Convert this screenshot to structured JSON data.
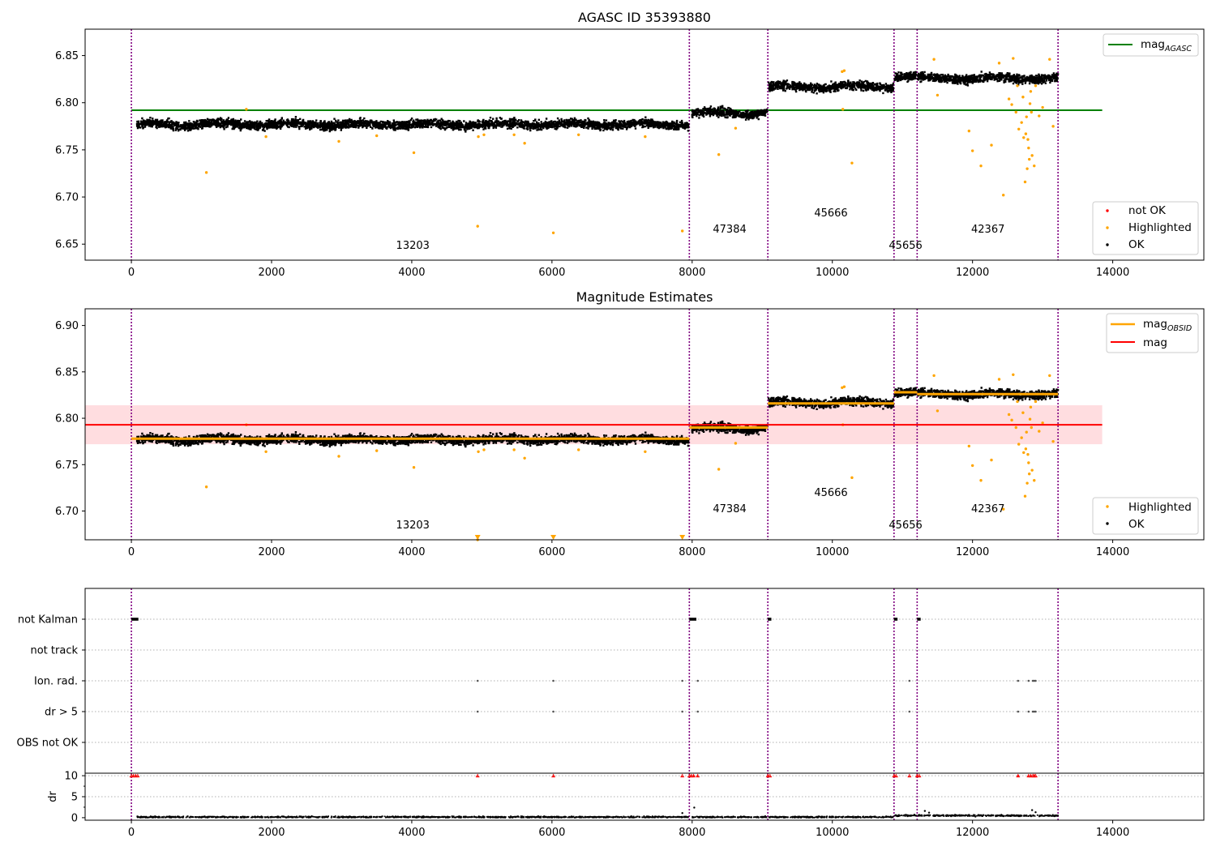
{
  "chart_data": [
    {
      "type": "scatter",
      "title": "AGASC ID 35393880",
      "xlabel": "",
      "ylabel": "",
      "xlim": [
        -660,
        15300
      ],
      "ylim": [
        6.633,
        6.878
      ],
      "x_ticks": [
        "0",
        "2000",
        "4000",
        "6000",
        "8000",
        "10000",
        "12000",
        "14000"
      ],
      "y_ticks": [
        "6.65",
        "6.70",
        "6.75",
        "6.80",
        "6.85"
      ],
      "legend_top": [
        "mag",
        "AGASC"
      ],
      "legend_bottom": [
        "not OK",
        "Highlighted",
        "OK"
      ],
      "obsid_labels": [
        "13203",
        "47384",
        "45666",
        "45656",
        "42367"
      ],
      "reference_line": {
        "name": "mag_AGASC",
        "y": 6.792,
        "x": [
          0,
          13850
        ],
        "color": "#008000"
      },
      "boundaries": [
        0,
        7960,
        9080,
        10880,
        11210,
        13220
      ],
      "segments": [
        {
          "obsid": "13203",
          "x": [
            80,
            7950
          ],
          "mean": 6.777,
          "spread": 0.006
        },
        {
          "obsid": "47384",
          "x": [
            8000,
            9070
          ],
          "mean": 6.789,
          "spread": 0.006
        },
        {
          "obsid": "45666",
          "x": [
            9090,
            10870
          ],
          "mean": 6.817,
          "spread": 0.006
        },
        {
          "obsid": "45656",
          "x": [
            10890,
            11200
          ],
          "mean": 6.828,
          "spread": 0.006
        },
        {
          "obsid": "42367",
          "x": [
            11220,
            13220
          ],
          "mean": 6.826,
          "spread": 0.006
        }
      ],
      "highlighted": [
        [
          1070,
          6.726
        ],
        [
          1640,
          6.793
        ],
        [
          1920,
          6.764
        ],
        [
          2960,
          6.759
        ],
        [
          3500,
          6.765
        ],
        [
          4030,
          6.747
        ],
        [
          4940,
          6.669
        ],
        [
          4950,
          6.764
        ],
        [
          5030,
          6.766
        ],
        [
          5460,
          6.766
        ],
        [
          5610,
          6.757
        ],
        [
          6020,
          6.662
        ],
        [
          6380,
          6.766
        ],
        [
          7330,
          6.764
        ],
        [
          7860,
          6.664
        ],
        [
          8380,
          6.745
        ],
        [
          8620,
          6.773
        ],
        [
          10140,
          6.833
        ],
        [
          10150,
          6.793
        ],
        [
          10280,
          6.736
        ],
        [
          10170,
          6.834
        ],
        [
          11450,
          6.846
        ],
        [
          11500,
          6.808
        ],
        [
          11950,
          6.77
        ],
        [
          12000,
          6.749
        ],
        [
          12120,
          6.733
        ],
        [
          12270,
          6.755
        ],
        [
          12380,
          6.842
        ],
        [
          12440,
          6.702
        ],
        [
          12520,
          6.804
        ],
        [
          12580,
          6.847
        ],
        [
          12640,
          6.818
        ],
        [
          12700,
          6.779
        ],
        [
          12750,
          6.716
        ],
        [
          12760,
          6.767
        ],
        [
          12780,
          6.73
        ],
        [
          12800,
          6.752
        ],
        [
          12820,
          6.799
        ],
        [
          12850,
          6.744
        ],
        [
          12880,
          6.733
        ],
        [
          12900,
          6.818
        ],
        [
          12950,
          6.786
        ],
        [
          13000,
          6.795
        ],
        [
          13100,
          6.846
        ],
        [
          13150,
          6.775
        ],
        [
          12620,
          6.79
        ],
        [
          12720,
          6.806
        ],
        [
          12790,
          6.761
        ],
        [
          12660,
          6.772
        ],
        [
          12830,
          6.812
        ],
        [
          12730,
          6.763
        ],
        [
          12840,
          6.79
        ],
        [
          12560,
          6.798
        ],
        [
          12770,
          6.785
        ],
        [
          12810,
          6.74
        ]
      ]
    },
    {
      "type": "scatter",
      "title": "Magnitude Estimates",
      "xlabel": "",
      "ylabel": "",
      "xlim": [
        -660,
        15300
      ],
      "ylim": [
        6.669,
        6.918
      ],
      "x_ticks": [
        "0",
        "2000",
        "4000",
        "6000",
        "8000",
        "10000",
        "12000",
        "14000"
      ],
      "y_ticks": [
        "6.70",
        "6.75",
        "6.80",
        "6.85",
        "6.90"
      ],
      "legend_top": [
        "mag",
        "OBSID",
        "mag"
      ],
      "legend_bottom": [
        "Highlighted",
        "OK"
      ],
      "obsid_labels": [
        "13203",
        "47384",
        "45666",
        "45656",
        "42367"
      ],
      "mean_line": {
        "name": "mag",
        "y": 6.793,
        "x": [
          -660,
          13850
        ],
        "band": [
          6.772,
          6.814
        ],
        "color": "#ff0000",
        "band_color": "#ffdde0"
      },
      "obsid_means": [
        {
          "x": [
            0,
            7960
          ],
          "y": 6.778
        },
        {
          "x": [
            7960,
            9080
          ],
          "y": 6.79
        },
        {
          "x": [
            9080,
            10880
          ],
          "y": 6.816
        },
        {
          "x": [
            10880,
            11210
          ],
          "y": 6.828
        },
        {
          "x": [
            11210,
            13220
          ],
          "y": 6.826
        }
      ],
      "out_of_range_markers": [
        4940,
        6020,
        7860
      ]
    },
    {
      "type": "scatter",
      "title": "",
      "xlabel": "",
      "ylabel": "",
      "xlim": [
        -660,
        15300
      ],
      "flag_categories": [
        "not Kalman",
        "not track",
        "Ion. rad.",
        "dr > 5",
        "OBS not OK"
      ],
      "flags": {
        "not Kalman": [
          [
            0,
            100
          ],
          [
            7960,
            8060
          ],
          [
            9080,
            9130
          ],
          [
            10880,
            10930
          ],
          [
            11210,
            11260
          ]
        ],
        "not track": [],
        "Ion. rad.": [
          4940,
          6020,
          7860,
          8080,
          11100,
          12650,
          12800,
          12860,
          12880,
          12900
        ],
        "dr > 5": [
          4940,
          6020,
          7860,
          8080,
          11100,
          12650,
          12800,
          12860,
          12880,
          12900
        ],
        "OBS not OK": []
      },
      "dr": {
        "ylabel": "dr",
        "ylim": [
          -0.6,
          10.6
        ],
        "y_ticks": [
          "0",
          "5",
          "10"
        ],
        "capped_points": [
          0,
          30,
          60,
          90,
          4940,
          6020,
          7860,
          7960,
          7990,
          8020,
          8080,
          9080,
          9110,
          10880,
          10910,
          11100,
          11210,
          11240,
          12650,
          12800,
          12830,
          12860,
          12880,
          12900
        ],
        "spikes": [
          [
            7860,
            1.1
          ],
          [
            8030,
            2.4
          ],
          [
            11320,
            1.6
          ],
          [
            11380,
            1.2
          ],
          [
            12850,
            1.8
          ],
          [
            12900,
            1.3
          ]
        ]
      }
    }
  ]
}
